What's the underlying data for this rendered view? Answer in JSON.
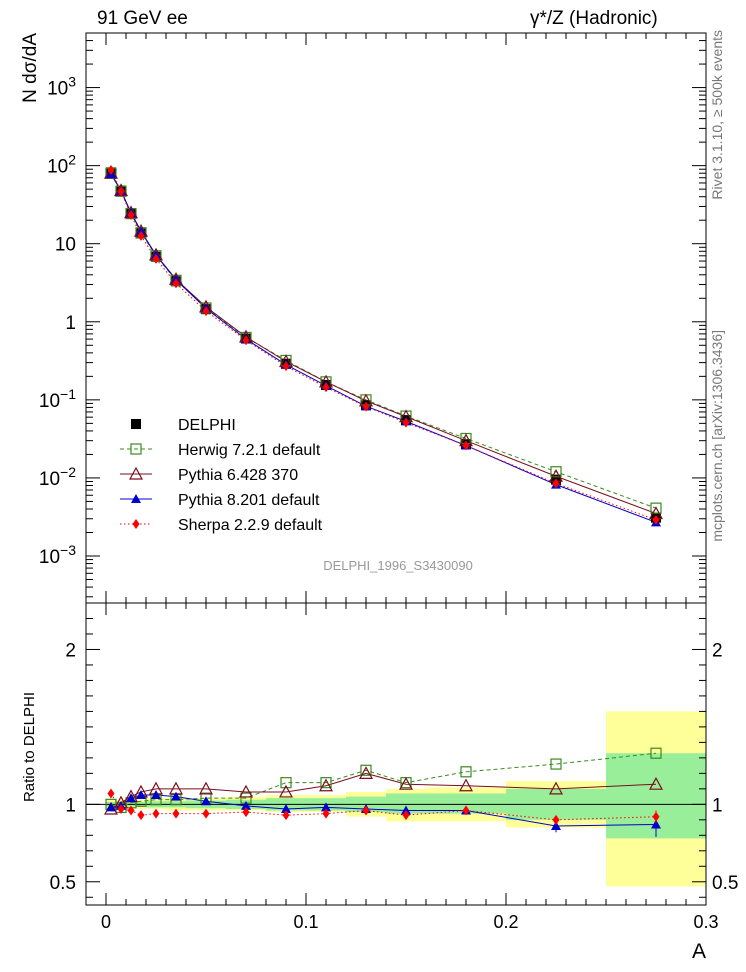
{
  "header": {
    "left_label": "91 GeV ee",
    "right_label": "γ*/Z (Hadronic)"
  },
  "side_labels": {
    "rivet": "Rivet 3.1.10, ≥ 500k events",
    "mcplots": "mcplots.cern.ch [arXiv:1306.3436]"
  },
  "analysis_id": "DELPHI_1996_S3430090",
  "chart_data": [
    {
      "type": "scatter",
      "scale": "log",
      "ylabel": "N dσ/dA",
      "xlim": [
        -0.01,
        0.3
      ],
      "ylim": [
        0.00025,
        5000
      ],
      "y_ticks": [
        {
          "v": 0.001,
          "m": "10",
          "e": "−3"
        },
        {
          "v": 0.01,
          "m": "10",
          "e": "−2"
        },
        {
          "v": 0.1,
          "m": "10",
          "e": "−1"
        },
        {
          "v": 1,
          "m": "1",
          "e": ""
        },
        {
          "v": 10,
          "m": "10",
          "e": ""
        },
        {
          "v": 100,
          "m": "10",
          "e": "2"
        },
        {
          "v": 1000,
          "m": "10",
          "e": "3"
        }
      ],
      "x": [
        0.0025,
        0.0075,
        0.0125,
        0.0175,
        0.025,
        0.035,
        0.05,
        0.07,
        0.09,
        0.11,
        0.13,
        0.15,
        0.18,
        0.225,
        0.275
      ],
      "series": [
        {
          "name": "DELPHI",
          "color": "#000000",
          "marker": "square-filled",
          "line": "none",
          "values": [
            82,
            48,
            24,
            13.5,
            6.8,
            3.3,
            1.45,
            0.61,
            0.29,
            0.155,
            0.085,
            0.055,
            0.027,
            0.0095,
            0.0031
          ]
        },
        {
          "name": "Herwig 7.2.1 default",
          "color": "#3a8a1e",
          "marker": "square-open",
          "line": "dashed",
          "values": [
            80,
            47,
            24.3,
            13.8,
            7.0,
            3.4,
            1.5,
            0.63,
            0.32,
            0.17,
            0.1,
            0.062,
            0.032,
            0.012,
            0.0041
          ]
        },
        {
          "name": "Pythia 6.428 370",
          "color": "#7a0e1e",
          "marker": "triangle-open",
          "line": "solid",
          "values": [
            80,
            48,
            25,
            14.5,
            7.2,
            3.5,
            1.55,
            0.64,
            0.31,
            0.17,
            0.097,
            0.061,
            0.03,
            0.0105,
            0.0035
          ]
        },
        {
          "name": "Pythia 8.201 default",
          "color": "#0000cc",
          "marker": "triangle-filled",
          "line": "solid",
          "values": [
            78,
            47.5,
            24.8,
            14.3,
            7.1,
            3.45,
            1.48,
            0.6,
            0.282,
            0.152,
            0.083,
            0.053,
            0.026,
            0.0082,
            0.0027
          ]
        },
        {
          "name": "Sherpa 2.2.9 default",
          "color": "#ff0000",
          "marker": "diamond-filled",
          "line": "dotted",
          "values": [
            88,
            46.5,
            23.3,
            12.6,
            6.4,
            3.1,
            1.37,
            0.58,
            0.27,
            0.145,
            0.082,
            0.051,
            0.026,
            0.0085,
            0.0029
          ]
        }
      ]
    },
    {
      "type": "scatter",
      "ylabel": "Ratio to DELPHI",
      "xlabel": "A",
      "xlim": [
        -0.01,
        0.3
      ],
      "ylim": [
        0.35,
        2.3
      ],
      "y_ticks": [
        0.5,
        1,
        2
      ],
      "x_ticks": [
        0,
        0.1,
        0.2,
        0.3
      ],
      "x_tick_labels": [
        "0",
        "0.1",
        "0.2",
        "0.3"
      ],
      "bins": [
        [
          0,
          0.005
        ],
        [
          0.005,
          0.01
        ],
        [
          0.01,
          0.015
        ],
        [
          0.015,
          0.02
        ],
        [
          0.02,
          0.03
        ],
        [
          0.03,
          0.04
        ],
        [
          0.04,
          0.06
        ],
        [
          0.06,
          0.08
        ],
        [
          0.08,
          0.1
        ],
        [
          0.1,
          0.12
        ],
        [
          0.12,
          0.14
        ],
        [
          0.14,
          0.16
        ],
        [
          0.16,
          0.2
        ],
        [
          0.2,
          0.25
        ],
        [
          0.25,
          0.3
        ]
      ],
      "band_outer": [
        [
          0.97,
          1.03
        ],
        [
          0.97,
          1.03
        ],
        [
          0.97,
          1.03
        ],
        [
          0.97,
          1.03
        ],
        [
          0.97,
          1.04
        ],
        [
          0.96,
          1.04
        ],
        [
          0.96,
          1.04
        ],
        [
          0.96,
          1.05
        ],
        [
          0.95,
          1.06
        ],
        [
          0.95,
          1.06
        ],
        [
          0.92,
          1.08
        ],
        [
          0.89,
          1.1
        ],
        [
          0.89,
          1.11
        ],
        [
          0.85,
          1.15
        ],
        [
          0.47,
          1.6
        ]
      ],
      "band_inner": [
        [
          0.985,
          1.015
        ],
        [
          0.985,
          1.015
        ],
        [
          0.985,
          1.015
        ],
        [
          0.985,
          1.015
        ],
        [
          0.98,
          1.02
        ],
        [
          0.98,
          1.02
        ],
        [
          0.975,
          1.025
        ],
        [
          0.97,
          1.03
        ],
        [
          0.96,
          1.04
        ],
        [
          0.96,
          1.04
        ],
        [
          0.95,
          1.05
        ],
        [
          0.94,
          1.07
        ],
        [
          0.94,
          1.07
        ],
        [
          0.9,
          1.1
        ],
        [
          0.78,
          1.33
        ]
      ],
      "x": [
        0.0025,
        0.0075,
        0.0125,
        0.0175,
        0.025,
        0.035,
        0.05,
        0.07,
        0.09,
        0.11,
        0.13,
        0.15,
        0.18,
        0.225,
        0.275
      ],
      "series": [
        {
          "name": "Herwig 7.2.1 default",
          "color": "#3a8a1e",
          "marker": "square-open",
          "line": "dashed",
          "values": [
            1.0,
            0.98,
            1.01,
            1.02,
            1.03,
            1.03,
            1.04,
            1.04,
            1.14,
            1.14,
            1.22,
            1.14,
            1.21,
            1.26,
            1.33
          ]
        },
        {
          "name": "Pythia 6.428 370",
          "color": "#7a0e1e",
          "marker": "triangle-open",
          "line": "solid",
          "values": [
            0.97,
            1.01,
            1.05,
            1.08,
            1.1,
            1.1,
            1.1,
            1.08,
            1.08,
            1.12,
            1.2,
            1.13,
            1.12,
            1.1,
            1.13
          ]
        },
        {
          "name": "Pythia 8.201 default",
          "color": "#0000cc",
          "marker": "triangle-filled",
          "line": "solid",
          "values": [
            0.98,
            0.99,
            1.04,
            1.06,
            1.06,
            1.05,
            1.02,
            0.99,
            0.97,
            0.98,
            0.97,
            0.96,
            0.96,
            0.86,
            0.87
          ],
          "errors": [
            0,
            0,
            0,
            0,
            0,
            0,
            0,
            0,
            0,
            0.015,
            0.015,
            0.015,
            0.02,
            0.04,
            0.08
          ]
        },
        {
          "name": "Sherpa 2.2.9 default",
          "color": "#ff0000",
          "marker": "diamond-filled",
          "line": "dotted",
          "values": [
            1.07,
            0.97,
            0.96,
            0.93,
            0.94,
            0.94,
            0.94,
            0.95,
            0.93,
            0.94,
            0.96,
            0.93,
            0.96,
            0.9,
            0.92
          ],
          "errors": [
            0,
            0,
            0,
            0,
            0,
            0,
            0,
            0,
            0,
            0,
            0,
            0,
            0.02,
            0.02,
            0.04
          ]
        }
      ]
    }
  ]
}
